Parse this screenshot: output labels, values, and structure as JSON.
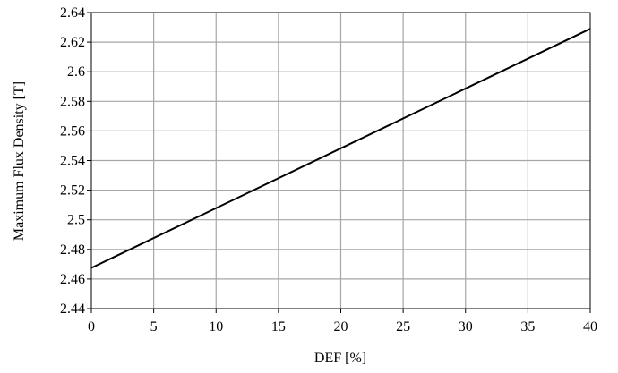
{
  "chart_data": {
    "type": "line",
    "xlabel": "DEF [%]",
    "ylabel": "Maximum Flux Density [T]",
    "xlim": [
      0,
      40
    ],
    "ylim": [
      2.44,
      2.64
    ],
    "xticks": [
      "0",
      "5",
      "10",
      "15",
      "20",
      "25",
      "30",
      "35",
      "40"
    ],
    "yticks": [
      "2.44",
      "2.46",
      "2.48",
      "2.5",
      "2.52",
      "2.54",
      "2.56",
      "2.58",
      "2.6",
      "2.62",
      "2.64"
    ],
    "grid": true,
    "series": [
      {
        "x": [
          0,
          40
        ],
        "values": [
          2.4675,
          2.629
        ],
        "color": "#000000"
      }
    ]
  }
}
